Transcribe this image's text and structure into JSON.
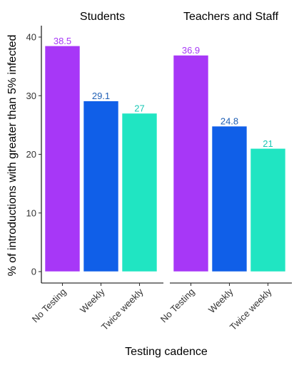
{
  "chart_data": {
    "type": "bar",
    "xlabel": "Testing cadence",
    "ylabel": "% of introductions with greater than 5% infected",
    "ylim": [
      0,
      42
    ],
    "yticks": [
      0,
      10,
      20,
      30,
      40
    ],
    "grid": false,
    "legend": "none",
    "categories": [
      "No Testing",
      "Weekly",
      "Twice weekly"
    ],
    "colors": [
      "#a737f7",
      "#105fe8",
      "#20e5c2"
    ],
    "label_colors": [
      "#a737f7",
      "#1f5fb5",
      "#19c8b5"
    ],
    "facets": [
      {
        "title": "Students",
        "values": [
          38.5,
          29.1,
          27
        ],
        "labels": [
          "38.5",
          "29.1",
          "27"
        ]
      },
      {
        "title": "Teachers and Staff",
        "values": [
          36.9,
          24.8,
          21
        ],
        "labels": [
          "36.9",
          "24.8",
          "21"
        ]
      }
    ]
  }
}
